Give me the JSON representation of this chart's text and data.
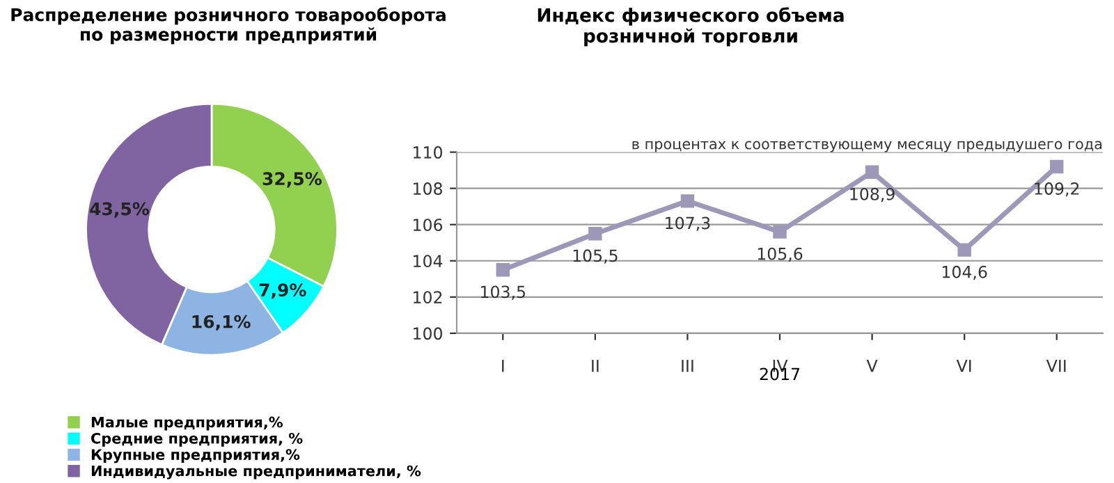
{
  "chart_data": [
    {
      "type": "donut",
      "title": "Распределение розничного товарооборота\nпо размерности предприятий",
      "categories": [
        "Малые предприятия,%",
        "Средние предприятия, %",
        "Крупные предприятия,%",
        "Индивидуальные предприниматели, %"
      ],
      "values": [
        32.5,
        7.9,
        16.1,
        43.5
      ],
      "colors": [
        "#92d050",
        "#00ffff",
        "#8eb4e3",
        "#8064a2"
      ],
      "value_labels": [
        "32,5%",
        "7,9%",
        "16,1%",
        "43,5%"
      ],
      "legend": "bottom"
    },
    {
      "type": "line",
      "title": "Индекс физического объема\nрозничной торговли",
      "subtitle": "в процентах к соответствующему месяцу предыдушего года",
      "xlabel": "2017",
      "categories": [
        "I",
        "II",
        "III",
        "IV",
        "V",
        "VI",
        "VII"
      ],
      "series": [
        {
          "color": "#9e98b8",
          "values": [
            103.5,
            105.5,
            107.3,
            105.6,
            108.9,
            104.6,
            109.2
          ]
        }
      ],
      "value_labels": [
        "103,5",
        "105,5",
        "107,3",
        "105,6",
        "108,9",
        "104,6",
        "109,2"
      ],
      "ylim": [
        100,
        110
      ],
      "yticks": [
        100,
        102,
        104,
        106,
        108,
        110
      ],
      "grid": "y",
      "marker": "square",
      "line_style": "solid"
    }
  ]
}
